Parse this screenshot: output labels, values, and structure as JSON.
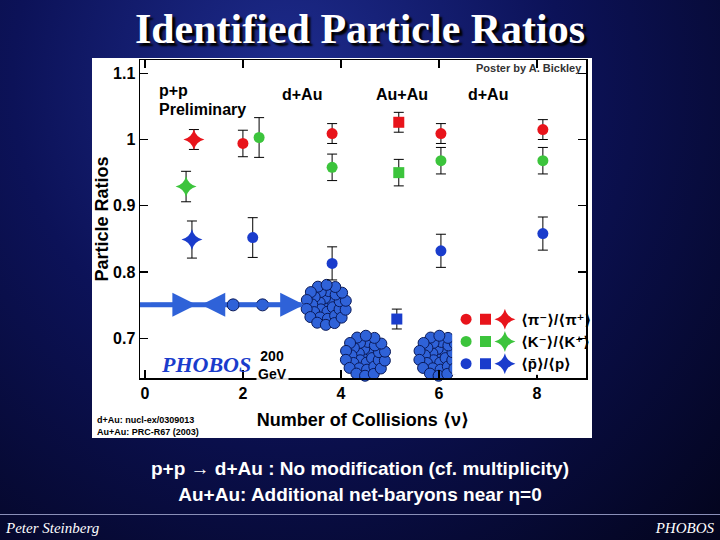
{
  "slide": {
    "title": "Identified Particle Ratios",
    "body": [
      "p+p → d+Au : No modification (cf. multiplicity)",
      "Au+Au: Additional net-baryons near η=0"
    ],
    "footer": [
      "Peter Steinberg",
      "PHOBOS"
    ]
  },
  "chart_data": {
    "type": "scatter",
    "x_label": "Number of Collisions ⟨ν⟩",
    "y_label": "Particle Ratios",
    "xlim": [
      -0.1,
      9
    ],
    "xticks": [
      0,
      2,
      4,
      6,
      8
    ],
    "ylim": [
      0.64,
      1.12
    ],
    "yticks": [
      0.7,
      0.8,
      0.9,
      1,
      1.1
    ],
    "grid": false,
    "legend": "lower right",
    "annotations": [
      "p+p",
      "Preliminary",
      "d+Au",
      "Au+Au",
      "d+Au",
      "Poster by A. Bickley",
      "200 GeV"
    ],
    "logo": "PHOBOS",
    "references": [
      "d+Au: nucl-ex/0309013",
      "Au+Au: PRC-R67 (2003)"
    ],
    "series": [
      {
        "name": "⟨π⁻⟩/⟨π⁺⟩",
        "color": "#e8141b",
        "marker": "circle",
        "x": [
          2.0,
          3.82,
          6.04,
          8.12
        ],
        "values": [
          0.994,
          1.009,
          1.009,
          1.015
        ],
        "errors": [
          0.02,
          0.015,
          0.015,
          0.015
        ]
      },
      {
        "name": "⟨π⁻⟩/⟨π⁺⟩",
        "color": "#e8141b",
        "marker": "square",
        "x": [
          5.18
        ],
        "values": [
          1.026
        ],
        "errors": [
          0.015
        ]
      },
      {
        "name": "⟨π⁻⟩/⟨π⁺⟩",
        "color": "#e8141b",
        "marker": "star",
        "x": [
          1.0
        ],
        "values": [
          1.0
        ],
        "errors": [
          0.015
        ]
      },
      {
        "name": "⟨K⁻⟩/⟨K⁺⟩",
        "color": "#3cc43c",
        "marker": "circle",
        "x": [
          2.33,
          3.82,
          6.04,
          8.12
        ],
        "values": [
          1.003,
          0.958,
          0.968,
          0.968
        ],
        "errors": [
          0.03,
          0.02,
          0.02,
          0.02
        ]
      },
      {
        "name": "⟨K⁻⟩/⟨K⁺⟩",
        "color": "#3cc43c",
        "marker": "square",
        "x": [
          5.18
        ],
        "values": [
          0.95
        ],
        "errors": [
          0.02
        ]
      },
      {
        "name": "⟨K⁻⟩/⟨K⁺⟩",
        "color": "#3cc43c",
        "marker": "star",
        "x": [
          0.84
        ],
        "values": [
          0.929
        ],
        "errors": [
          0.023
        ]
      },
      {
        "name": "⟨p̄⟩/⟨p⟩",
        "color": "#1a3ccc",
        "marker": "circle",
        "x": [
          2.2,
          3.82,
          6.04,
          8.12
        ],
        "values": [
          0.852,
          0.813,
          0.832,
          0.858
        ],
        "errors": [
          0.03,
          0.025,
          0.025,
          0.025
        ]
      },
      {
        "name": "⟨p̄⟩/⟨p⟩",
        "color": "#1a3ccc",
        "marker": "square",
        "x": [
          5.14
        ],
        "values": [
          0.729
        ],
        "errors": [
          0.015
        ]
      },
      {
        "name": "⟨p̄⟩/⟨p⟩",
        "color": "#1a3ccc",
        "marker": "star",
        "x": [
          0.96
        ],
        "values": [
          0.849
        ],
        "errors": [
          0.028
        ]
      }
    ]
  }
}
